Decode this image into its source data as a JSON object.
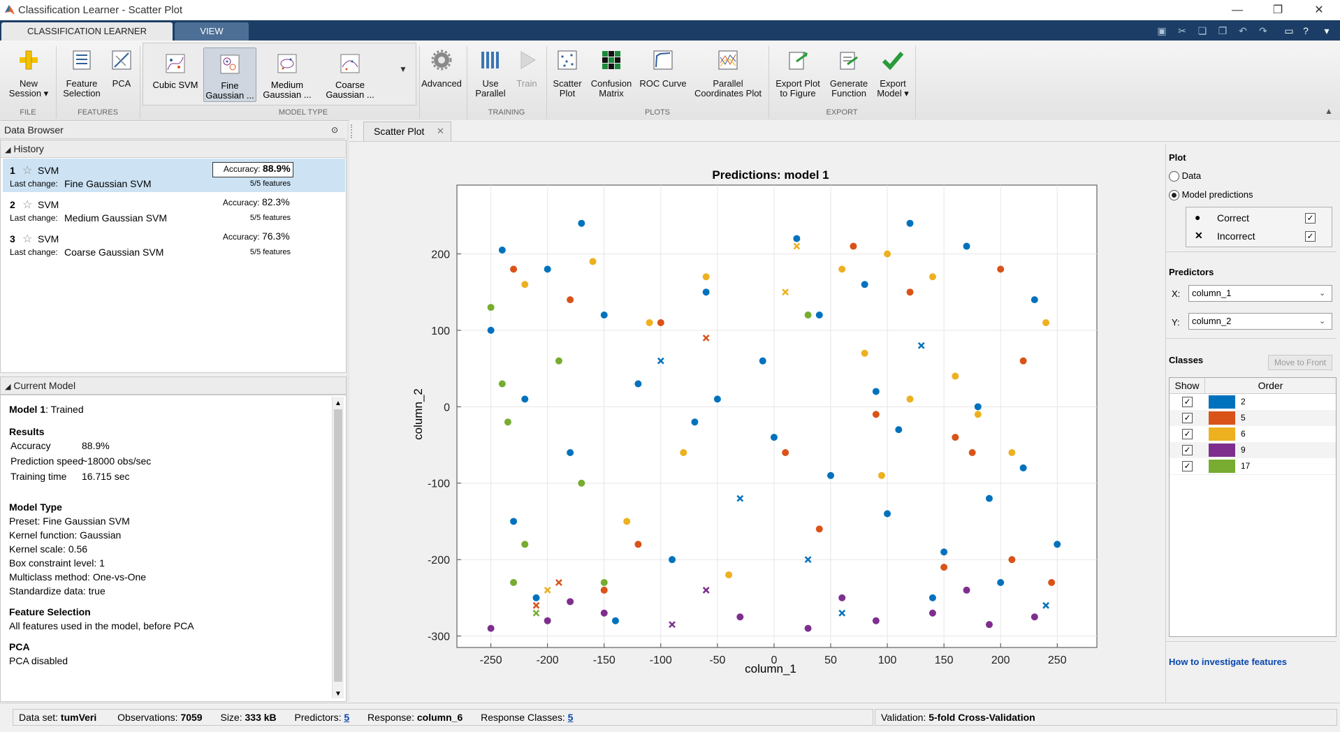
{
  "window": {
    "title": "Classification Learner - Scatter Plot"
  },
  "tabs": {
    "classification_learner": "CLASSIFICATION LEARNER",
    "view": "VIEW"
  },
  "ribbon": {
    "new_session": "New\nSession ▾",
    "feature_selection": "Feature\nSelection",
    "pca": "PCA",
    "cubic_svm": "Cubic SVM",
    "fine_gaussian": "Fine\nGaussian ...",
    "medium_gaussian": "Medium\nGaussian ...",
    "coarse_gaussian": "Coarse\nGaussian ...",
    "advanced": "Advanced",
    "use_parallel": "Use\nParallel",
    "train": "Train",
    "scatter_plot": "Scatter\nPlot",
    "confusion_matrix": "Confusion\nMatrix",
    "roc_curve": "ROC Curve",
    "parallel_coords": "Parallel\nCoordinates Plot",
    "export_plot": "Export Plot\nto Figure",
    "generate_function": "Generate\nFunction",
    "export_model": "Export\nModel ▾",
    "groups": {
      "file": "FILE",
      "features": "FEATURES",
      "model_type": "MODEL TYPE",
      "training": "TRAINING",
      "plots": "PLOTS",
      "export": "EXPORT"
    }
  },
  "data_browser": {
    "title": "Data Browser",
    "history_label": "History",
    "history": [
      {
        "num": "1",
        "model": "SVM",
        "last_change_label": "Last change:",
        "last_change": "Fine Gaussian SVM",
        "accuracy_label": "Accuracy:",
        "accuracy": "88.9%",
        "features": "5/5 features"
      },
      {
        "num": "2",
        "model": "SVM",
        "last_change_label": "Last change:",
        "last_change": "Medium Gaussian SVM",
        "accuracy_label": "Accuracy:",
        "accuracy": "82.3%",
        "features": "5/5 features"
      },
      {
        "num": "3",
        "model": "SVM",
        "last_change_label": "Last change:",
        "last_change": "Coarse Gaussian SVM",
        "accuracy_label": "Accuracy:",
        "accuracy": "76.3%",
        "features": "5/5 features"
      }
    ],
    "current_model_label": "Current Model"
  },
  "current_model": {
    "model_name": "Model 1",
    "status": ": Trained",
    "results_heading": "Results",
    "results": [
      {
        "k": "Accuracy",
        "v": "88.9%"
      },
      {
        "k": "Prediction speed",
        "v": "~18000 obs/sec"
      },
      {
        "k": "Training time",
        "v": "16.715 sec"
      }
    ],
    "model_type_heading": "Model Type",
    "model_type_lines": [
      "Preset: Fine Gaussian SVM",
      "Kernel function: Gaussian",
      "Kernel scale: 0.56",
      "Box constraint level: 1",
      "Multiclass method: One-vs-One",
      "Standardize data: true"
    ],
    "feature_selection_heading": "Feature Selection",
    "feature_selection_text": "All features used in the model, before PCA",
    "pca_heading": "PCA",
    "pca_text": "PCA disabled"
  },
  "plot_tab": {
    "label": "Scatter Plot"
  },
  "right_panel": {
    "plot_heading": "Plot",
    "data_option": "Data",
    "model_predictions_option": "Model predictions",
    "correct_label": "Correct",
    "incorrect_label": "Incorrect",
    "predictors_heading": "Predictors",
    "x_label": "X:",
    "x_value": "column_1",
    "y_label": "Y:",
    "y_value": "column_2",
    "classes_heading": "Classes",
    "move_to_front": "Move to Front",
    "show_col": "Show",
    "order_col": "Order",
    "classes": [
      {
        "name": "2",
        "color": "#0072BD"
      },
      {
        "name": "5",
        "color": "#D95319"
      },
      {
        "name": "6",
        "color": "#EDB120"
      },
      {
        "name": "9",
        "color": "#7E2F8E"
      },
      {
        "name": "17",
        "color": "#77AC30"
      }
    ],
    "help_link": "How to investigate features"
  },
  "status_bar": {
    "dataset_label": "Data set:",
    "dataset": "tumVeri",
    "obs_label": "Observations:",
    "obs": "7059",
    "size_label": "Size:",
    "size": "333 kB",
    "predictors_label": "Predictors:",
    "predictors": "5",
    "response_label": "Response:",
    "response": "column_6",
    "classes_label": "Response Classes:",
    "classes": "5",
    "validation_label": "Validation:",
    "validation": "5-fold Cross-Validation"
  },
  "chart_data": {
    "type": "scatter",
    "title": "Predictions: model 1",
    "xlabel": "column_1",
    "ylabel": "column_2",
    "xlim": [
      -280,
      285
    ],
    "ylim": [
      -315,
      290
    ],
    "xticks": [
      -250,
      -200,
      -150,
      -100,
      -50,
      0,
      50,
      100,
      150,
      200,
      250
    ],
    "yticks": [
      -300,
      -200,
      -100,
      0,
      100,
      200
    ],
    "grid": true,
    "legend": "none",
    "series": [
      {
        "name": "2",
        "color": "#0072BD",
        "points": [
          [
            -240,
            205
          ],
          [
            -200,
            180
          ],
          [
            -150,
            120
          ],
          [
            -100,
            60
          ],
          [
            -50,
            10
          ],
          [
            0,
            -40
          ],
          [
            50,
            -90
          ],
          [
            100,
            -140
          ],
          [
            150,
            -190
          ],
          [
            200,
            -230
          ],
          [
            240,
            -260
          ],
          [
            -230,
            -150
          ],
          [
            -180,
            -60
          ],
          [
            -120,
            30
          ],
          [
            -60,
            150
          ],
          [
            20,
            220
          ],
          [
            80,
            160
          ],
          [
            130,
            80
          ],
          [
            180,
            0
          ],
          [
            220,
            -80
          ],
          [
            -250,
            100
          ],
          [
            -210,
            -250
          ],
          [
            -170,
            240
          ],
          [
            -90,
            -200
          ],
          [
            -30,
            -120
          ],
          [
            40,
            120
          ],
          [
            110,
            -30
          ],
          [
            170,
            210
          ],
          [
            230,
            140
          ],
          [
            250,
            -180
          ],
          [
            -140,
            -280
          ],
          [
            60,
            -270
          ],
          [
            140,
            -250
          ],
          [
            -10,
            60
          ],
          [
            90,
            20
          ],
          [
            -70,
            -20
          ],
          [
            190,
            -120
          ],
          [
            -220,
            10
          ],
          [
            30,
            -200
          ],
          [
            120,
            240
          ]
        ]
      },
      {
        "name": "5",
        "color": "#D95319",
        "points": [
          [
            -230,
            180
          ],
          [
            -180,
            140
          ],
          [
            -120,
            -180
          ],
          [
            -60,
            90
          ],
          [
            10,
            -60
          ],
          [
            70,
            210
          ],
          [
            120,
            150
          ],
          [
            160,
            -40
          ],
          [
            210,
            -200
          ],
          [
            245,
            -230
          ],
          [
            -210,
            -260
          ],
          [
            -150,
            -240
          ],
          [
            150,
            -210
          ],
          [
            200,
            180
          ],
          [
            -100,
            110
          ],
          [
            90,
            -10
          ],
          [
            175,
            -60
          ],
          [
            -190,
            -230
          ],
          [
            220,
            60
          ],
          [
            40,
            -160
          ]
        ]
      },
      {
        "name": "6",
        "color": "#EDB120",
        "points": [
          [
            -160,
            190
          ],
          [
            -110,
            110
          ],
          [
            -60,
            170
          ],
          [
            20,
            210
          ],
          [
            60,
            180
          ],
          [
            100,
            200
          ],
          [
            140,
            170
          ],
          [
            180,
            -10
          ],
          [
            210,
            -60
          ],
          [
            -130,
            -150
          ],
          [
            -200,
            -240
          ],
          [
            80,
            70
          ],
          [
            120,
            10
          ],
          [
            160,
            40
          ],
          [
            -40,
            -220
          ],
          [
            240,
            110
          ],
          [
            -220,
            160
          ],
          [
            10,
            150
          ],
          [
            95,
            -90
          ],
          [
            -80,
            -60
          ]
        ]
      },
      {
        "name": "9",
        "color": "#7E2F8E",
        "points": [
          [
            -250,
            -290
          ],
          [
            -200,
            -280
          ],
          [
            -150,
            -270
          ],
          [
            -90,
            -285
          ],
          [
            -30,
            -275
          ],
          [
            30,
            -290
          ],
          [
            90,
            -280
          ],
          [
            140,
            -270
          ],
          [
            190,
            -285
          ],
          [
            230,
            -275
          ],
          [
            -60,
            -240
          ],
          [
            60,
            -250
          ],
          [
            170,
            -240
          ],
          [
            -180,
            -255
          ]
        ]
      },
      {
        "name": "17",
        "color": "#77AC30",
        "points": [
          [
            -250,
            130
          ],
          [
            -235,
            -20
          ],
          [
            -220,
            -180
          ],
          [
            -210,
            -270
          ],
          [
            -190,
            60
          ],
          [
            -170,
            -100
          ],
          [
            -150,
            -230
          ],
          [
            30,
            120
          ],
          [
            -240,
            30
          ],
          [
            -230,
            -230
          ]
        ]
      }
    ]
  }
}
